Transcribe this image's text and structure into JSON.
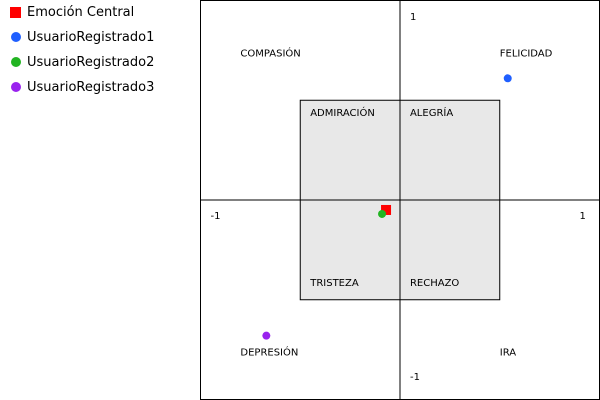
{
  "legend": {
    "items": [
      {
        "label": "Emoción Central",
        "marker": "square",
        "color": "#ff0000"
      },
      {
        "label": "UsuarioRegistrado1",
        "marker": "circle",
        "color": "#1f5fff"
      },
      {
        "label": "UsuarioRegistrado2",
        "marker": "circle",
        "color": "#22b422"
      },
      {
        "label": "UsuarioRegistrado3",
        "marker": "circle",
        "color": "#9922ee"
      }
    ]
  },
  "chart_data": {
    "type": "scatter",
    "xlim": [
      -1,
      1
    ],
    "ylim": [
      -1,
      1
    ],
    "tick_labels": {
      "x_min": "-1",
      "x_max": "1",
      "y_min": "-1",
      "y_max": "1"
    },
    "inner_box": {
      "range": 0.5,
      "fill": "#e8e8e8"
    },
    "region_labels": [
      {
        "text": "COMPASIÓN",
        "x": -0.8,
        "y": 0.72
      },
      {
        "text": "FELICIDAD",
        "x": 0.5,
        "y": 0.72
      },
      {
        "text": "ADMIRACIÓN",
        "x": -0.45,
        "y": 0.42
      },
      {
        "text": "ALEGRÍA",
        "x": 0.05,
        "y": 0.42
      },
      {
        "text": "TRISTEZA",
        "x": -0.45,
        "y": -0.43
      },
      {
        "text": "RECHAZO",
        "x": 0.05,
        "y": -0.43
      },
      {
        "text": "DEPRESIÓN",
        "x": -0.8,
        "y": -0.78
      },
      {
        "text": "IRA",
        "x": 0.5,
        "y": -0.78
      }
    ],
    "series": [
      {
        "name": "Emoción Central",
        "marker": "square",
        "color": "#ff0000",
        "points": [
          {
            "x": -0.07,
            "y": -0.05
          }
        ]
      },
      {
        "name": "UsuarioRegistrado1",
        "marker": "circle",
        "color": "#1f5fff",
        "points": [
          {
            "x": 0.54,
            "y": 0.61
          }
        ]
      },
      {
        "name": "UsuarioRegistrado2",
        "marker": "circle",
        "color": "#22b422",
        "points": [
          {
            "x": -0.09,
            "y": -0.07
          }
        ]
      },
      {
        "name": "UsuarioRegistrado3",
        "marker": "circle",
        "color": "#9922ee",
        "points": [
          {
            "x": -0.67,
            "y": -0.68
          }
        ]
      }
    ]
  }
}
